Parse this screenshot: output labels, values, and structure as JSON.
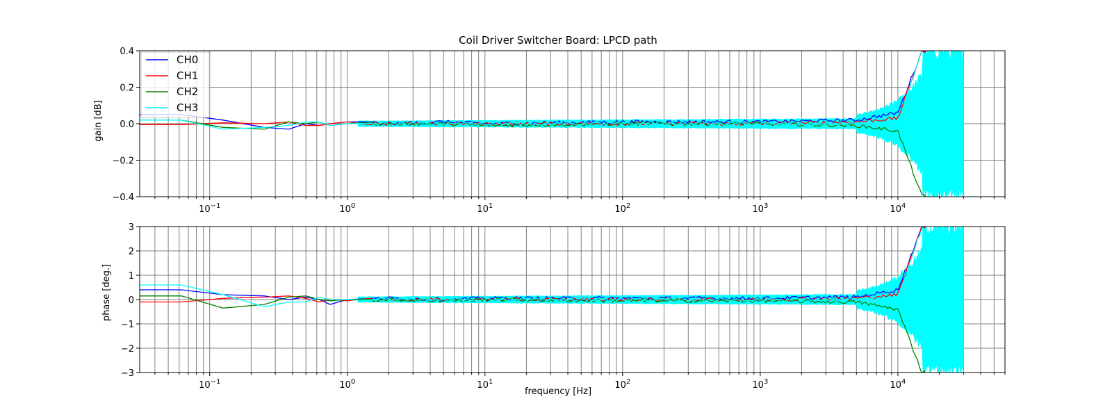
{
  "chart_data": [
    {
      "type": "line",
      "title": "Coil Driver Switcher Board: LPCD path",
      "xlabel": "",
      "ylabel": "gain [dB]",
      "xscale": "log",
      "xlim": [
        0.031,
        60000
      ],
      "ylim": [
        -0.4,
        0.4
      ],
      "yticks": [
        "0.4",
        "0.2",
        "0.0",
        "−0.2",
        "−0.4"
      ],
      "ytick_values": [
        0.4,
        0.2,
        0.0,
        -0.2,
        -0.4
      ],
      "xticks": [
        {
          "base": "10",
          "exp": "−1",
          "value": 0.1
        },
        {
          "base": "10",
          "exp": "0",
          "value": 1
        },
        {
          "base": "10",
          "exp": "1",
          "value": 10
        },
        {
          "base": "10",
          "exp": "2",
          "value": 100
        },
        {
          "base": "10",
          "exp": "3",
          "value": 1000
        },
        {
          "base": "10",
          "exp": "4",
          "value": 10000
        }
      ],
      "grid": true,
      "legend": "upper-left",
      "series": [
        {
          "name": "CH0",
          "color": "#0000ff",
          "x": [
            0.031,
            0.0625,
            0.125,
            0.25,
            0.375,
            0.5,
            0.625,
            0.75,
            1,
            2,
            5,
            10,
            100,
            1000,
            5000,
            10000,
            15000
          ],
          "y": [
            0.05,
            0.05,
            0.02,
            -0.02,
            -0.03,
            0.0,
            -0.01,
            0.0,
            0.01,
            0.0,
            0.01,
            0.0,
            0.01,
            0.01,
            0.02,
            0.06,
            0.4
          ]
        },
        {
          "name": "CH1",
          "color": "#ff0000",
          "x": [
            0.031,
            0.0625,
            0.125,
            0.25,
            0.375,
            0.5,
            0.625,
            0.75,
            1,
            2,
            5,
            10,
            100,
            1000,
            5000,
            10000,
            15000
          ],
          "y": [
            -0.005,
            -0.005,
            0.005,
            0.0,
            0.01,
            -0.01,
            -0.01,
            0.0,
            0.01,
            0.0,
            0.0,
            0.0,
            0.0,
            0.0,
            0.01,
            0.03,
            0.4
          ]
        },
        {
          "name": "CH2",
          "color": "#008000",
          "x": [
            0.031,
            0.0625,
            0.125,
            0.25,
            0.375,
            0.5,
            0.625,
            0.75,
            1,
            2,
            5,
            10,
            100,
            1000,
            5000,
            10000,
            15000
          ],
          "y": [
            0.02,
            0.02,
            -0.02,
            -0.03,
            0.01,
            0.0,
            0.01,
            -0.01,
            0.0,
            0.0,
            0.0,
            -0.01,
            0.0,
            0.0,
            -0.01,
            -0.04,
            -0.4
          ]
        },
        {
          "name": "CH3",
          "color": "#00ffff",
          "x": [
            0.031,
            0.0625,
            0.125,
            0.25,
            0.375,
            0.5,
            0.625,
            0.75,
            1,
            2,
            5,
            10,
            100,
            1000,
            5000,
            10000,
            15000
          ],
          "y": [
            0.02,
            0.02,
            -0.03,
            -0.02,
            -0.01,
            0.01,
            0.01,
            -0.01,
            0.0,
            0.0,
            0.0,
            0.0,
            0.0,
            0.0,
            0.0,
            0.0,
            0.4
          ]
        }
      ],
      "noise_band": {
        "color": "#00ffff",
        "x_end": 30000
      }
    },
    {
      "type": "line",
      "title": "",
      "xlabel": "frequency [Hz]",
      "ylabel": "phase [deg.]",
      "xscale": "log",
      "xlim": [
        0.031,
        60000
      ],
      "ylim": [
        -3,
        3
      ],
      "yticks": [
        "3",
        "2",
        "1",
        "0",
        "−1",
        "−2",
        "−3"
      ],
      "ytick_values": [
        3,
        2,
        1,
        0,
        -1,
        -2,
        -3
      ],
      "xticks": [
        {
          "base": "10",
          "exp": "−1",
          "value": 0.1
        },
        {
          "base": "10",
          "exp": "0",
          "value": 1
        },
        {
          "base": "10",
          "exp": "1",
          "value": 10
        },
        {
          "base": "10",
          "exp": "2",
          "value": 100
        },
        {
          "base": "10",
          "exp": "3",
          "value": 1000
        },
        {
          "base": "10",
          "exp": "4",
          "value": 10000
        }
      ],
      "grid": true,
      "series": [
        {
          "name": "CH0",
          "color": "#0000ff",
          "x": [
            0.031,
            0.0625,
            0.125,
            0.25,
            0.375,
            0.5,
            0.625,
            0.75,
            1,
            2,
            5,
            10,
            100,
            1000,
            5000,
            10000,
            15000
          ],
          "y": [
            0.4,
            0.4,
            0.2,
            0.15,
            0.0,
            0.1,
            0.0,
            -0.2,
            0.0,
            0.05,
            0.0,
            0.05,
            0.05,
            0.05,
            0.1,
            0.4,
            3.0
          ]
        },
        {
          "name": "CH1",
          "color": "#ff0000",
          "x": [
            0.031,
            0.0625,
            0.125,
            0.25,
            0.375,
            0.5,
            0.625,
            0.75,
            1,
            2,
            5,
            10,
            100,
            1000,
            5000,
            10000,
            15000
          ],
          "y": [
            -0.1,
            -0.1,
            0.05,
            0.1,
            0.15,
            0.05,
            -0.1,
            0.0,
            -0.05,
            0.0,
            0.0,
            0.0,
            0.0,
            0.0,
            0.05,
            0.2,
            3.0
          ]
        },
        {
          "name": "CH2",
          "color": "#008000",
          "x": [
            0.031,
            0.0625,
            0.125,
            0.25,
            0.375,
            0.5,
            0.625,
            0.75,
            1,
            2,
            5,
            10,
            100,
            1000,
            5000,
            10000,
            15000
          ],
          "y": [
            0.15,
            0.15,
            -0.35,
            -0.2,
            0.1,
            0.15,
            0.0,
            -0.05,
            0.0,
            0.0,
            -0.05,
            0.0,
            -0.05,
            -0.05,
            -0.1,
            -0.4,
            -3.0
          ]
        },
        {
          "name": "CH3",
          "color": "#00ffff",
          "x": [
            0.031,
            0.0625,
            0.125,
            0.25,
            0.375,
            0.5,
            0.625,
            0.75,
            1,
            2,
            5,
            10,
            100,
            1000,
            5000,
            10000,
            15000
          ],
          "y": [
            0.6,
            0.6,
            0.2,
            -0.3,
            -0.1,
            -0.1,
            0.1,
            0.0,
            0.0,
            0.0,
            0.0,
            0.0,
            0.0,
            0.0,
            0.0,
            0.0,
            3.0
          ]
        }
      ],
      "noise_band": {
        "color": "#00ffff",
        "x_end": 30000
      }
    }
  ]
}
